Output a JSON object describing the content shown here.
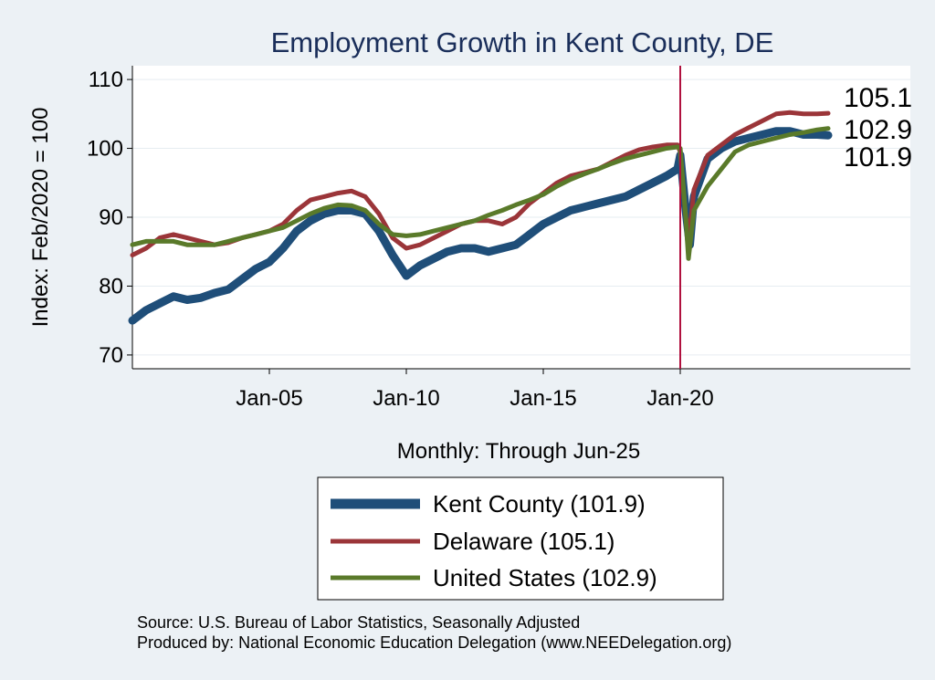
{
  "colors": {
    "background": "#ecf1f5",
    "plot_background": "#ffffff",
    "grid": "#e6ecf1",
    "title": "#1a2e5a",
    "kent": "#1f4e79",
    "delaware": "#9b3539",
    "us": "#5a7a2a",
    "marker": "#b0103e"
  },
  "chart_data": {
    "type": "line",
    "title": "Employment Growth in Kent  County, DE",
    "ylabel": "Index: Feb/2020 = 100",
    "xlabel": "Monthly: Through Jun-25",
    "ylim": [
      68,
      112
    ],
    "xlim": [
      2000.0,
      2028.4
    ],
    "yticks": [
      70,
      80,
      90,
      100,
      110
    ],
    "ytick_labels": [
      "70",
      "80",
      "90",
      "100",
      "110"
    ],
    "xticks": [
      2005.0,
      2010.0,
      2015.0,
      2020.0
    ],
    "xtick_labels": [
      "Jan-05",
      "Jan-10",
      "Jan-15",
      "Jan-20"
    ],
    "vline_x": 2020.0,
    "series": [
      {
        "name": "Kent County",
        "legend_label": "Kent  County (101.9)",
        "end_label": "101.9",
        "color_key": "kent",
        "width": "thick",
        "points": [
          [
            2000.0,
            75.0
          ],
          [
            2000.5,
            76.5
          ],
          [
            2001.0,
            77.5
          ],
          [
            2001.5,
            78.5
          ],
          [
            2002.0,
            78.0
          ],
          [
            2002.5,
            78.3
          ],
          [
            2003.0,
            79.0
          ],
          [
            2003.5,
            79.5
          ],
          [
            2004.0,
            81.0
          ],
          [
            2004.5,
            82.5
          ],
          [
            2005.0,
            83.5
          ],
          [
            2005.5,
            85.5
          ],
          [
            2006.0,
            88.0
          ],
          [
            2006.5,
            89.5
          ],
          [
            2007.0,
            90.5
          ],
          [
            2007.5,
            91.0
          ],
          [
            2008.0,
            91.0
          ],
          [
            2008.5,
            90.5
          ],
          [
            2009.0,
            88.0
          ],
          [
            2009.5,
            84.5
          ],
          [
            2010.0,
            81.5
          ],
          [
            2010.5,
            83.0
          ],
          [
            2011.0,
            84.0
          ],
          [
            2011.5,
            85.0
          ],
          [
            2012.0,
            85.5
          ],
          [
            2012.5,
            85.5
          ],
          [
            2013.0,
            85.0
          ],
          [
            2013.5,
            85.5
          ],
          [
            2014.0,
            86.0
          ],
          [
            2014.5,
            87.5
          ],
          [
            2015.0,
            89.0
          ],
          [
            2015.5,
            90.0
          ],
          [
            2016.0,
            91.0
          ],
          [
            2016.5,
            91.5
          ],
          [
            2017.0,
            92.0
          ],
          [
            2017.5,
            92.5
          ],
          [
            2018.0,
            93.0
          ],
          [
            2018.5,
            94.0
          ],
          [
            2019.0,
            95.0
          ],
          [
            2019.5,
            96.0
          ],
          [
            2019.9,
            97.0
          ],
          [
            2020.0,
            99.0
          ],
          [
            2020.2,
            91.0
          ],
          [
            2020.35,
            86.0
          ],
          [
            2020.5,
            93.0
          ],
          [
            2021.0,
            98.5
          ],
          [
            2021.5,
            100.0
          ],
          [
            2022.0,
            101.0
          ],
          [
            2022.5,
            101.5
          ],
          [
            2023.0,
            102.0
          ],
          [
            2023.5,
            102.5
          ],
          [
            2024.0,
            102.5
          ],
          [
            2024.5,
            102.0
          ],
          [
            2025.0,
            102.0
          ],
          [
            2025.4,
            101.9
          ]
        ]
      },
      {
        "name": "Delaware",
        "legend_label": "Delaware (105.1)",
        "end_label": "105.1",
        "color_key": "delaware",
        "width": "medium",
        "points": [
          [
            2000.0,
            84.5
          ],
          [
            2000.5,
            85.5
          ],
          [
            2001.0,
            87.0
          ],
          [
            2001.5,
            87.5
          ],
          [
            2002.0,
            87.0
          ],
          [
            2002.5,
            86.5
          ],
          [
            2003.0,
            86.0
          ],
          [
            2003.5,
            86.3
          ],
          [
            2004.0,
            87.0
          ],
          [
            2004.5,
            87.5
          ],
          [
            2005.0,
            88.0
          ],
          [
            2005.5,
            89.0
          ],
          [
            2006.0,
            91.0
          ],
          [
            2006.5,
            92.5
          ],
          [
            2007.0,
            93.0
          ],
          [
            2007.5,
            93.5
          ],
          [
            2008.0,
            93.8
          ],
          [
            2008.5,
            93.0
          ],
          [
            2009.0,
            90.5
          ],
          [
            2009.5,
            87.0
          ],
          [
            2010.0,
            85.5
          ],
          [
            2010.5,
            86.0
          ],
          [
            2011.0,
            87.0
          ],
          [
            2011.5,
            88.0
          ],
          [
            2012.0,
            89.0
          ],
          [
            2012.5,
            89.5
          ],
          [
            2013.0,
            89.5
          ],
          [
            2013.5,
            89.0
          ],
          [
            2014.0,
            90.0
          ],
          [
            2014.5,
            92.0
          ],
          [
            2015.0,
            93.5
          ],
          [
            2015.5,
            95.0
          ],
          [
            2016.0,
            96.0
          ],
          [
            2016.5,
            96.5
          ],
          [
            2017.0,
            97.0
          ],
          [
            2017.5,
            98.0
          ],
          [
            2018.0,
            99.0
          ],
          [
            2018.5,
            99.8
          ],
          [
            2019.0,
            100.2
          ],
          [
            2019.5,
            100.5
          ],
          [
            2019.9,
            100.5
          ],
          [
            2020.0,
            99.5
          ],
          [
            2020.2,
            90.0
          ],
          [
            2020.35,
            88.0
          ],
          [
            2020.5,
            94.0
          ],
          [
            2021.0,
            99.0
          ],
          [
            2021.5,
            100.5
          ],
          [
            2022.0,
            102.0
          ],
          [
            2022.5,
            103.0
          ],
          [
            2023.0,
            104.0
          ],
          [
            2023.5,
            105.0
          ],
          [
            2024.0,
            105.2
          ],
          [
            2024.5,
            105.0
          ],
          [
            2025.0,
            105.0
          ],
          [
            2025.4,
            105.1
          ]
        ]
      },
      {
        "name": "United States",
        "legend_label": "United States (102.9)",
        "end_label": "102.9",
        "color_key": "us",
        "width": "medium",
        "points": [
          [
            2000.0,
            86.0
          ],
          [
            2000.5,
            86.5
          ],
          [
            2001.0,
            86.5
          ],
          [
            2001.5,
            86.5
          ],
          [
            2002.0,
            86.0
          ],
          [
            2002.5,
            86.0
          ],
          [
            2003.0,
            86.0
          ],
          [
            2003.5,
            86.5
          ],
          [
            2004.0,
            87.0
          ],
          [
            2004.5,
            87.5
          ],
          [
            2005.0,
            88.0
          ],
          [
            2005.5,
            88.5
          ],
          [
            2006.0,
            89.5
          ],
          [
            2006.5,
            90.5
          ],
          [
            2007.0,
            91.3
          ],
          [
            2007.5,
            91.8
          ],
          [
            2008.0,
            91.7
          ],
          [
            2008.5,
            91.0
          ],
          [
            2009.0,
            89.0
          ],
          [
            2009.5,
            87.5
          ],
          [
            2010.0,
            87.3
          ],
          [
            2010.5,
            87.5
          ],
          [
            2011.0,
            88.0
          ],
          [
            2011.5,
            88.5
          ],
          [
            2012.0,
            89.0
          ],
          [
            2012.5,
            89.5
          ],
          [
            2013.0,
            90.3
          ],
          [
            2013.5,
            91.0
          ],
          [
            2014.0,
            91.8
          ],
          [
            2014.5,
            92.5
          ],
          [
            2015.0,
            93.3
          ],
          [
            2015.5,
            94.5
          ],
          [
            2016.0,
            95.5
          ],
          [
            2016.5,
            96.3
          ],
          [
            2017.0,
            97.0
          ],
          [
            2017.5,
            97.8
          ],
          [
            2018.0,
            98.5
          ],
          [
            2018.5,
            99.0
          ],
          [
            2019.0,
            99.5
          ],
          [
            2019.5,
            100.0
          ],
          [
            2019.9,
            100.2
          ],
          [
            2020.0,
            100.0
          ],
          [
            2020.2,
            90.0
          ],
          [
            2020.3,
            84.0
          ],
          [
            2020.5,
            91.0
          ],
          [
            2021.0,
            94.5
          ],
          [
            2021.5,
            97.0
          ],
          [
            2022.0,
            99.5
          ],
          [
            2022.5,
            100.5
          ],
          [
            2023.0,
            101.0
          ],
          [
            2023.5,
            101.5
          ],
          [
            2024.0,
            102.0
          ],
          [
            2024.5,
            102.3
          ],
          [
            2025.0,
            102.7
          ],
          [
            2025.4,
            102.9
          ]
        ]
      }
    ]
  },
  "source": {
    "line1": "Source: U.S. Bureau of Labor Statistics, Seasonally Adjusted",
    "line2": "Produced by: National Economic Education Delegation (www.NEEDelegation.org)"
  }
}
